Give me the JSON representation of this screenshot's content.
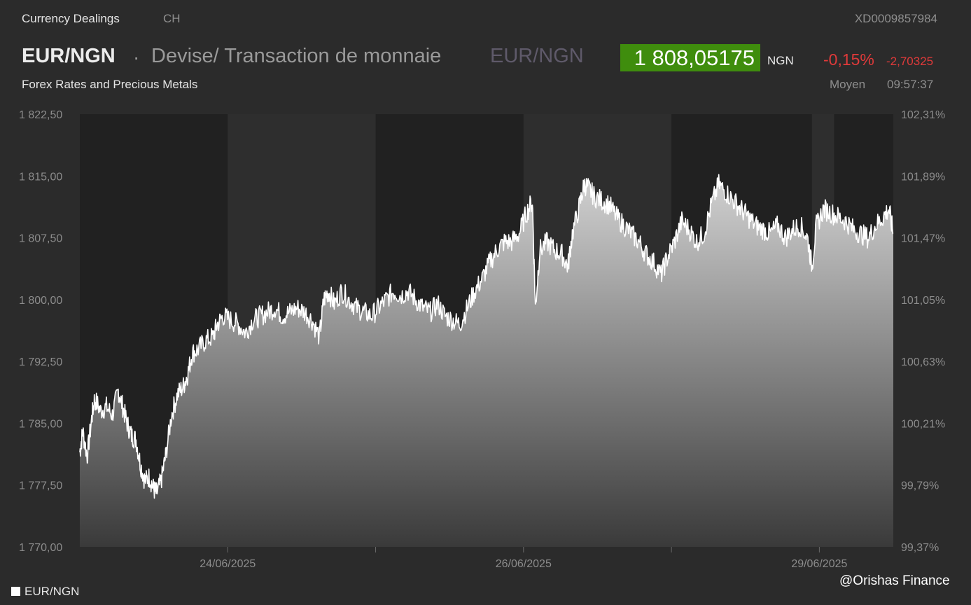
{
  "header": {
    "app_title": "Currency Dealings",
    "country": "CH",
    "instrument_id": "XD0009857984",
    "pair": "EUR/NGN",
    "separator": "·",
    "description": "Devise/ Transaction de monnaie",
    "pair_secondary": "EUR/NGN",
    "price": "1 808,05175",
    "price_unit": "NGN",
    "change_pct": "-0,15%",
    "change_abs": "-2,70325",
    "subtitle": "Forex Rates and Precious Metals",
    "price_type": "Moyen",
    "time": "09:57:37"
  },
  "colors": {
    "price_box": "#3f8d0d",
    "negative": "#e03a3a",
    "line": "#ffffff"
  },
  "legend": {
    "label": "EUR/NGN"
  },
  "credit": "@Orishas Finance",
  "chart_data": {
    "type": "area",
    "ylim": [
      1770.0,
      1822.5
    ],
    "y_ticks": [
      {
        "value": 1822.5,
        "label": "1 822,50"
      },
      {
        "value": 1815.0,
        "label": "1 815,00"
      },
      {
        "value": 1807.5,
        "label": "1 807,50"
      },
      {
        "value": 1800.0,
        "label": "1 800,00"
      },
      {
        "value": 1792.5,
        "label": "1 792,50"
      },
      {
        "value": 1785.0,
        "label": "1 785,00"
      },
      {
        "value": 1777.5,
        "label": "1 777,50"
      },
      {
        "value": 1770.0,
        "label": "1 770,00"
      }
    ],
    "y2_ticks": [
      "102,31%",
      "101,89%",
      "101,47%",
      "101,05%",
      "100,63%",
      "100,21%",
      "99,79%",
      "99,37%"
    ],
    "x_domain": [
      0,
      5.5
    ],
    "x_ticks": [
      {
        "x": 1.0,
        "label": "24/06/2025"
      },
      {
        "x": 3.0,
        "label": "26/06/2025"
      },
      {
        "x": 5.0,
        "label": "29/06/2025"
      }
    ],
    "day_bands": [
      [
        0,
        1
      ],
      [
        2,
        3
      ],
      [
        4,
        4.95
      ],
      [
        5.1,
        5.5
      ]
    ],
    "day_boundaries": [
      1,
      2,
      3,
      4,
      5
    ],
    "series": [
      {
        "name": "EUR/NGN",
        "points": [
          [
            0.0,
            1781.5
          ],
          [
            0.02,
            1784.0
          ],
          [
            0.05,
            1781.0
          ],
          [
            0.08,
            1785.5
          ],
          [
            0.1,
            1788.0
          ],
          [
            0.14,
            1786.5
          ],
          [
            0.18,
            1787.0
          ],
          [
            0.22,
            1786.0
          ],
          [
            0.26,
            1789.0
          ],
          [
            0.29,
            1787.0
          ],
          [
            0.32,
            1785.0
          ],
          [
            0.35,
            1783.5
          ],
          [
            0.38,
            1783.0
          ],
          [
            0.41,
            1780.0
          ],
          [
            0.44,
            1778.0
          ],
          [
            0.47,
            1778.5
          ],
          [
            0.5,
            1777.0
          ],
          [
            0.52,
            1776.5
          ],
          [
            0.55,
            1778.0
          ],
          [
            0.58,
            1781.0
          ],
          [
            0.62,
            1786.0
          ],
          [
            0.66,
            1788.5
          ],
          [
            0.7,
            1789.5
          ],
          [
            0.73,
            1791.0
          ],
          [
            0.76,
            1793.5
          ],
          [
            0.8,
            1794.0
          ],
          [
            0.85,
            1795.0
          ],
          [
            0.9,
            1795.5
          ],
          [
            0.93,
            1797.0
          ],
          [
            0.97,
            1798.0
          ],
          [
            1.02,
            1797.5
          ],
          [
            1.07,
            1797.0
          ],
          [
            1.12,
            1796.0
          ],
          [
            1.17,
            1797.5
          ],
          [
            1.22,
            1798.0
          ],
          [
            1.27,
            1798.5
          ],
          [
            1.32,
            1799.0
          ],
          [
            1.37,
            1798.0
          ],
          [
            1.42,
            1798.5
          ],
          [
            1.47,
            1799.0
          ],
          [
            1.52,
            1798.5
          ],
          [
            1.57,
            1797.5
          ],
          [
            1.62,
            1795.5
          ],
          [
            1.65,
            1800.0
          ],
          [
            1.68,
            1801.0
          ],
          [
            1.72,
            1799.5
          ],
          [
            1.77,
            1801.0
          ],
          [
            1.82,
            1800.0
          ],
          [
            1.87,
            1799.0
          ],
          [
            1.92,
            1798.5
          ],
          [
            1.97,
            1798.0
          ],
          [
            2.02,
            1799.0
          ],
          [
            2.07,
            1800.0
          ],
          [
            2.12,
            1801.0
          ],
          [
            2.17,
            1800.5
          ],
          [
            2.22,
            1801.0
          ],
          [
            2.27,
            1800.0
          ],
          [
            2.32,
            1799.0
          ],
          [
            2.37,
            1798.5
          ],
          [
            2.42,
            1799.5
          ],
          [
            2.47,
            1798.0
          ],
          [
            2.52,
            1797.5
          ],
          [
            2.57,
            1797.0
          ],
          [
            2.62,
            1799.0
          ],
          [
            2.67,
            1801.0
          ],
          [
            2.72,
            1802.5
          ],
          [
            2.77,
            1804.5
          ],
          [
            2.82,
            1806.0
          ],
          [
            2.87,
            1807.0
          ],
          [
            2.92,
            1807.0
          ],
          [
            2.97,
            1808.0
          ],
          [
            3.02,
            1810.5
          ],
          [
            3.06,
            1812.0
          ],
          [
            3.08,
            1799.0
          ],
          [
            3.11,
            1806.0
          ],
          [
            3.16,
            1807.0
          ],
          [
            3.21,
            1806.0
          ],
          [
            3.26,
            1805.5
          ],
          [
            3.3,
            1804.0
          ],
          [
            3.33,
            1808.0
          ],
          [
            3.38,
            1811.5
          ],
          [
            3.41,
            1814.0
          ],
          [
            3.44,
            1813.5
          ],
          [
            3.48,
            1812.5
          ],
          [
            3.53,
            1812.0
          ],
          [
            3.58,
            1811.5
          ],
          [
            3.63,
            1810.0
          ],
          [
            3.68,
            1809.0
          ],
          [
            3.73,
            1808.0
          ],
          [
            3.78,
            1807.0
          ],
          [
            3.83,
            1805.5
          ],
          [
            3.88,
            1804.5
          ],
          [
            3.93,
            1803.0
          ],
          [
            3.97,
            1805.0
          ],
          [
            4.02,
            1807.0
          ],
          [
            4.07,
            1809.5
          ],
          [
            4.12,
            1808.5
          ],
          [
            4.17,
            1807.0
          ],
          [
            4.22,
            1808.0
          ],
          [
            4.27,
            1811.5
          ],
          [
            4.32,
            1814.0
          ],
          [
            4.37,
            1813.0
          ],
          [
            4.42,
            1812.0
          ],
          [
            4.47,
            1811.0
          ],
          [
            4.52,
            1810.0
          ],
          [
            4.57,
            1809.0
          ],
          [
            4.62,
            1808.5
          ],
          [
            4.67,
            1808.0
          ],
          [
            4.72,
            1809.0
          ],
          [
            4.77,
            1807.5
          ],
          [
            4.82,
            1808.5
          ],
          [
            4.87,
            1809.0
          ],
          [
            4.92,
            1807.5
          ],
          [
            4.95,
            1804.0
          ],
          [
            4.98,
            1809.0
          ],
          [
            5.03,
            1811.0
          ],
          [
            5.08,
            1810.5
          ],
          [
            5.13,
            1810.0
          ],
          [
            5.18,
            1809.5
          ],
          [
            5.23,
            1808.5
          ],
          [
            5.28,
            1808.0
          ],
          [
            5.33,
            1807.5
          ],
          [
            5.38,
            1809.0
          ],
          [
            5.43,
            1810.0
          ],
          [
            5.47,
            1811.0
          ],
          [
            5.5,
            1808.0
          ]
        ]
      }
    ]
  }
}
